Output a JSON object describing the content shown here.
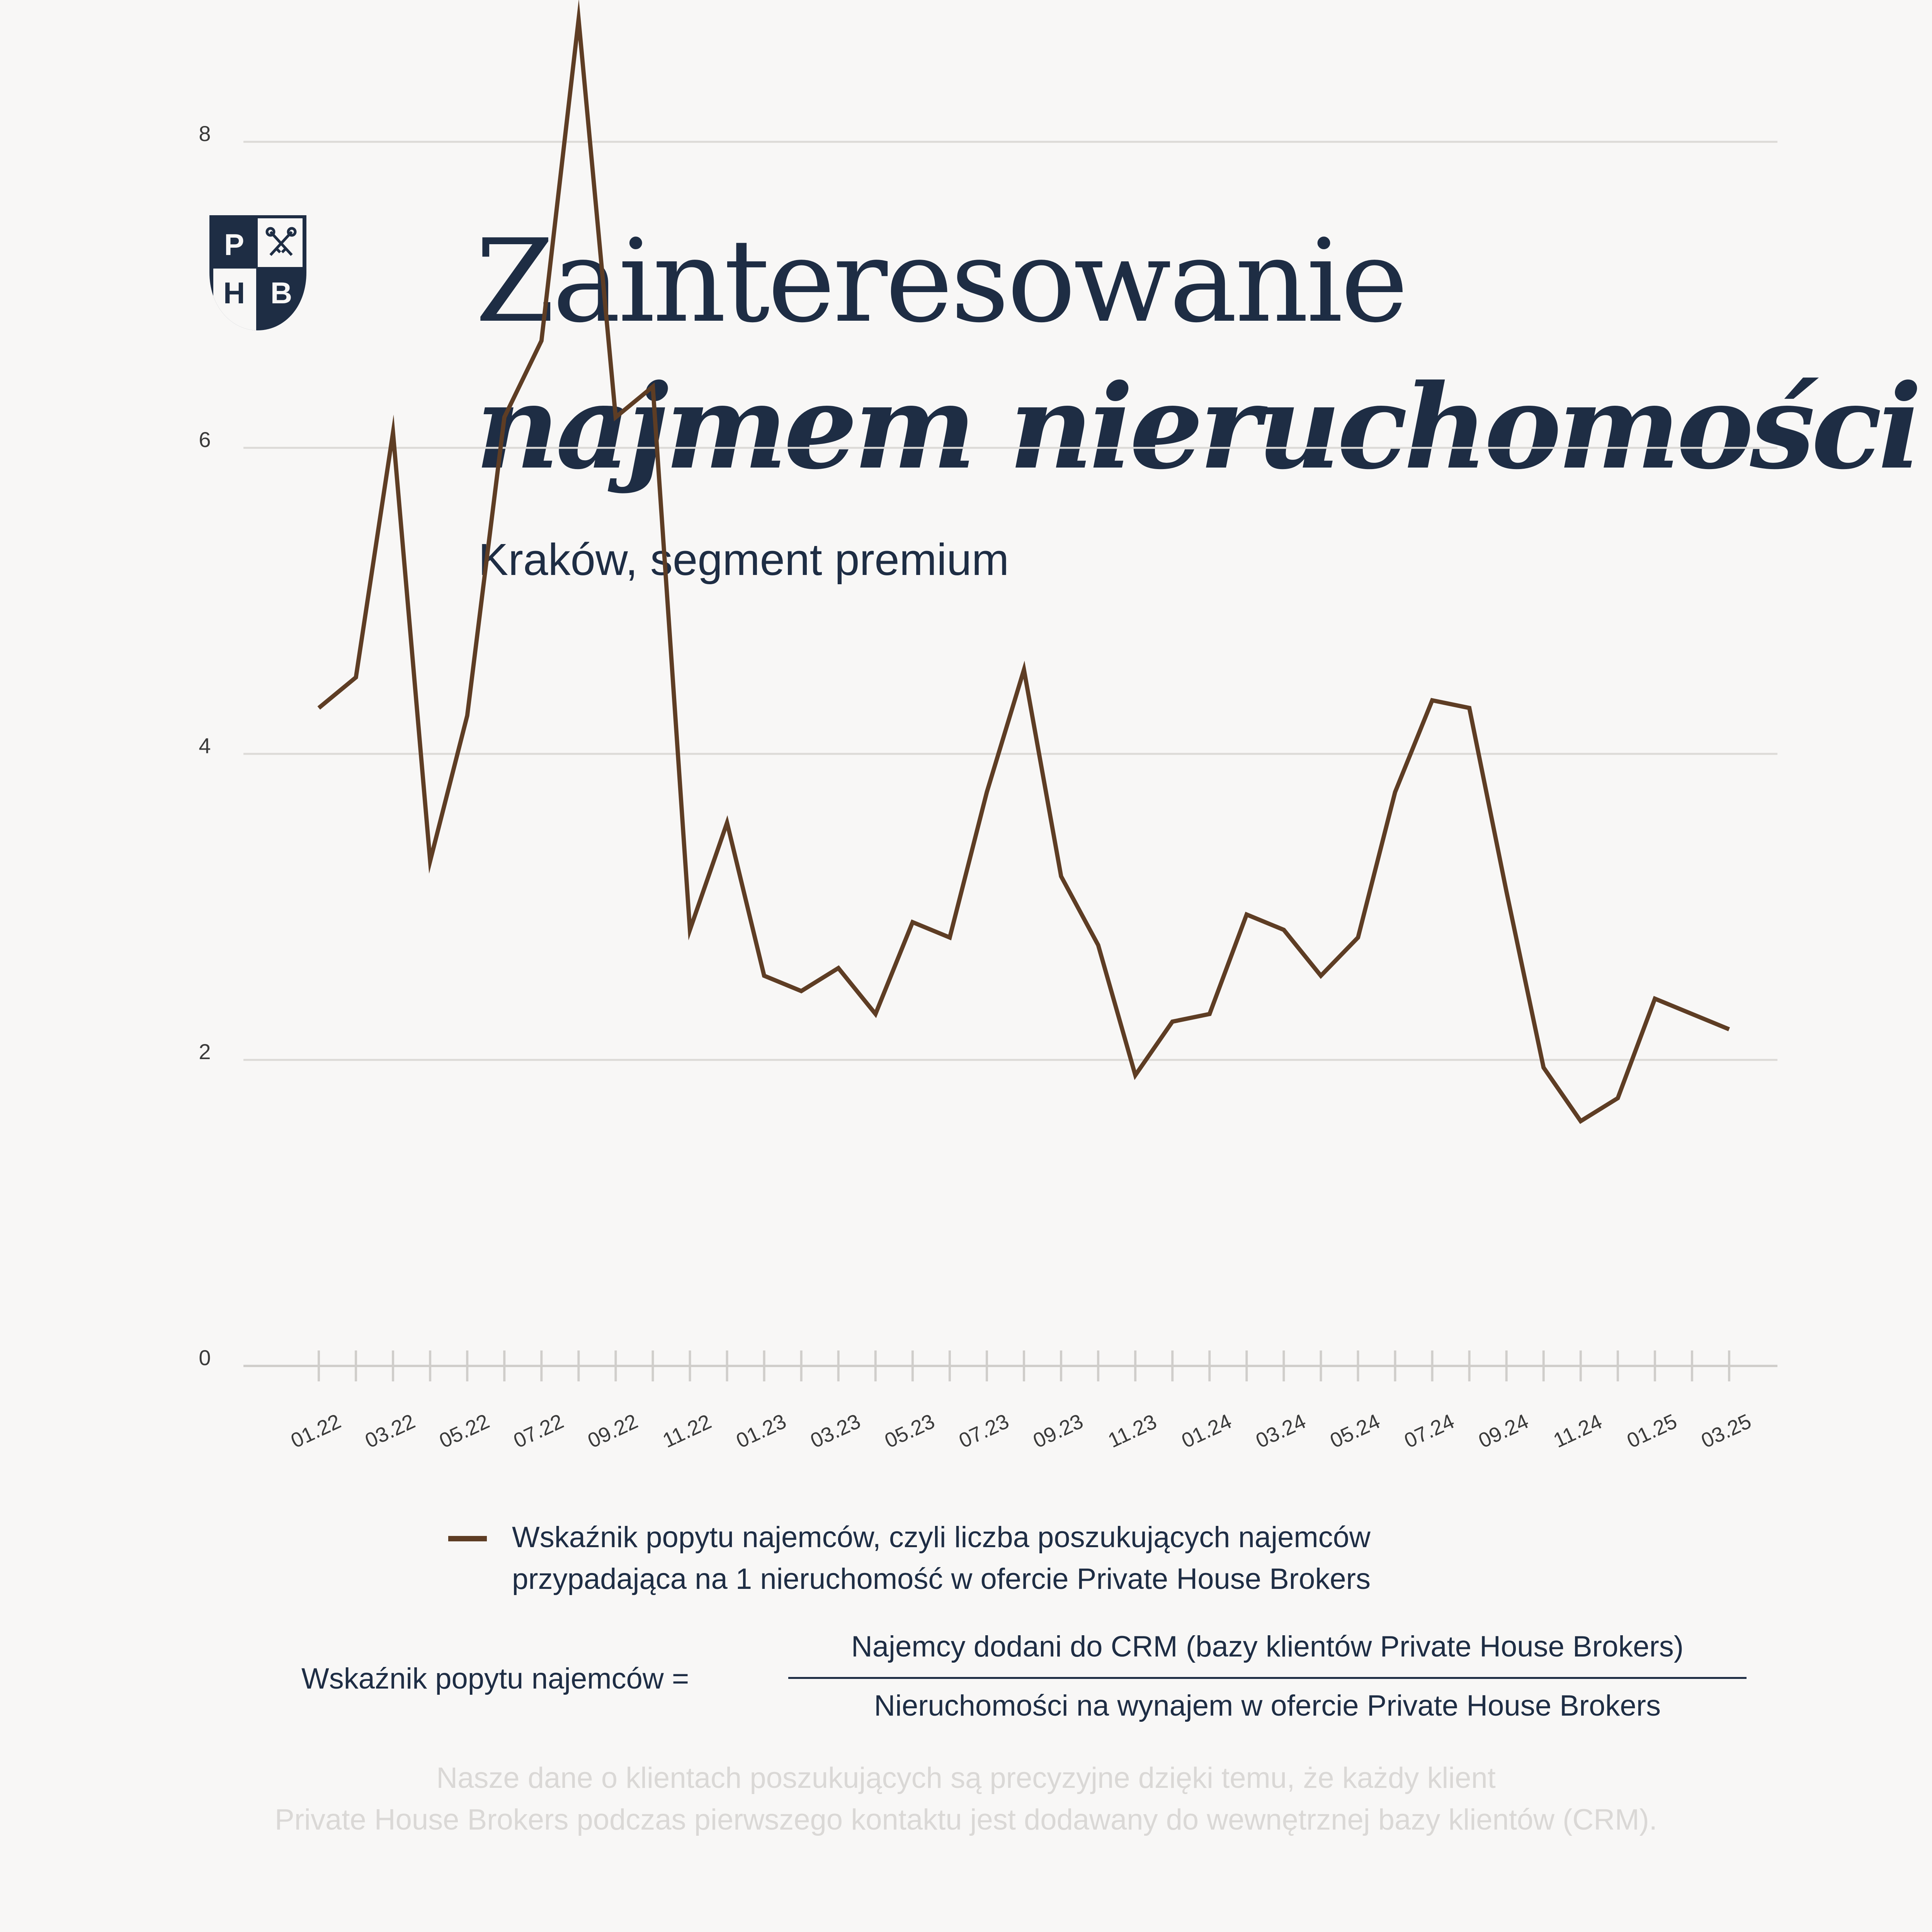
{
  "logo": {
    "letters": [
      "P",
      "H",
      "B"
    ],
    "icon": "crossed-keys-icon",
    "color": "#1e2d44"
  },
  "header": {
    "title_line1": "Zainteresowanie",
    "title_line2": "najmem nieruchomości",
    "subtitle": "Kraków, segment premium"
  },
  "chart_data": {
    "type": "line",
    "x": [
      "01.22",
      "02.22",
      "03.22",
      "04.22",
      "05.22",
      "06.22",
      "07.22",
      "08.22",
      "09.22",
      "10.22",
      "11.22",
      "12.22",
      "01.23",
      "02.23",
      "03.23",
      "04.23",
      "05.23",
      "06.23",
      "07.23",
      "08.23",
      "09.23",
      "10.23",
      "11.23",
      "12.23",
      "01.24",
      "02.24",
      "03.24",
      "04.24",
      "05.24",
      "06.24",
      "07.24",
      "08.24",
      "09.24",
      "10.24",
      "11.24",
      "12.24",
      "01.25",
      "02.25",
      "03.25"
    ],
    "x_tick_labels": [
      "01.22",
      "03.22",
      "05.22",
      "07.22",
      "09.22",
      "11.22",
      "01.23",
      "03.23",
      "05.23",
      "07.23",
      "09.23",
      "11.23",
      "01.24",
      "03.24",
      "05.24",
      "07.24",
      "09.24",
      "11.24",
      "01.25",
      "03.25"
    ],
    "series": [
      {
        "name": "Wskaźnik popytu najemców, czyli liczba poszukujących najemców przypadająca na 1 nieruchomość w ofercie Private House Brokers",
        "color": "#5e3d24",
        "values": [
          4.3,
          4.5,
          6.1,
          3.3,
          4.25,
          6.2,
          6.7,
          8.8,
          6.2,
          6.4,
          2.85,
          3.55,
          2.55,
          2.45,
          2.6,
          2.3,
          2.9,
          2.8,
          3.75,
          4.55,
          3.2,
          2.75,
          1.9,
          2.25,
          2.3,
          2.95,
          2.85,
          2.55,
          2.8,
          3.75,
          4.35,
          4.3,
          3.1,
          1.95,
          1.6,
          1.75,
          2.4,
          2.3,
          2.2
        ]
      }
    ],
    "y_ticks": [
      0,
      2,
      4,
      6,
      8
    ],
    "ylim": [
      0,
      8.8
    ],
    "grid": true,
    "grid_color": "#dcdad7",
    "axis_color": "#d0cecb",
    "tick_label_color": "#3a3a3a"
  },
  "legend": {
    "line1": "Wskaźnik popytu najemców, czyli liczba poszukujących najemców",
    "line2": "przypadająca na 1 nieruchomość w ofercie Private House Brokers"
  },
  "formula": {
    "label": "Wskaźnik popytu najemców =",
    "numerator": "Najemcy dodani do CRM (bazy klientów Private House Brokers)",
    "denominator": "Nieruchomości na wynajem w ofercie Private House Brokers"
  },
  "footnote": {
    "line1": "Nasze dane o klientach poszukujących są precyzyjne dzięki temu, że każdy klient",
    "line2": "Private House Brokers podczas pierwszego kontaktu jest dodawany do wewnętrznej bazy klientów (CRM)."
  }
}
